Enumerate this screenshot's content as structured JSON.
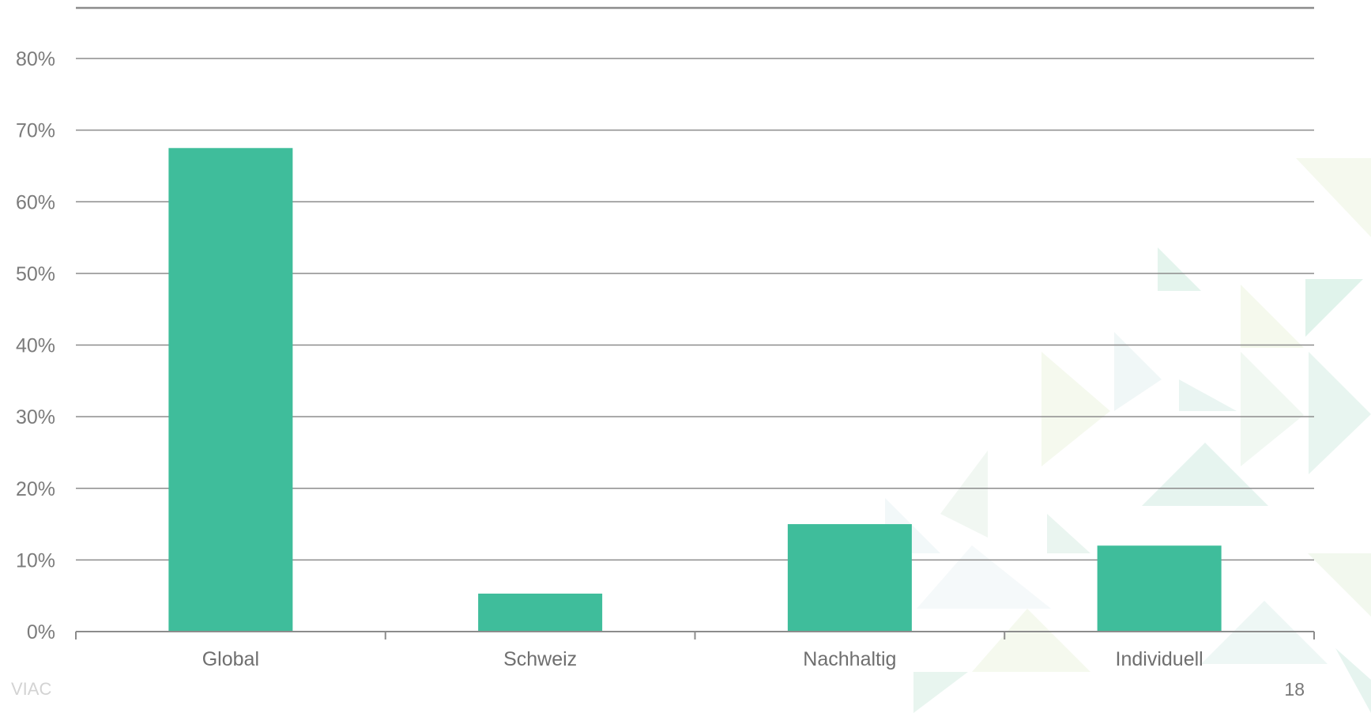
{
  "footer": {
    "brand": "VIAC",
    "page_number": "18"
  },
  "colors": {
    "bar": "#3fbd9b",
    "grid": "#8c8c8c",
    "axis": "#8c8c8c"
  },
  "chart_data": {
    "type": "bar",
    "title": "",
    "xlabel": "",
    "ylabel": "",
    "categories": [
      "Global",
      "Schweiz",
      "Nachhaltig",
      "Individuell"
    ],
    "values": [
      67.5,
      5.3,
      15.0,
      12.0
    ],
    "ylim": [
      0,
      80
    ],
    "yticks": [
      0,
      10,
      20,
      30,
      40,
      50,
      60,
      70,
      80
    ],
    "ytick_labels": [
      "0%",
      "10%",
      "20%",
      "30%",
      "40%",
      "50%",
      "60%",
      "70%",
      "80%"
    ],
    "grid": true,
    "legend": "none"
  }
}
